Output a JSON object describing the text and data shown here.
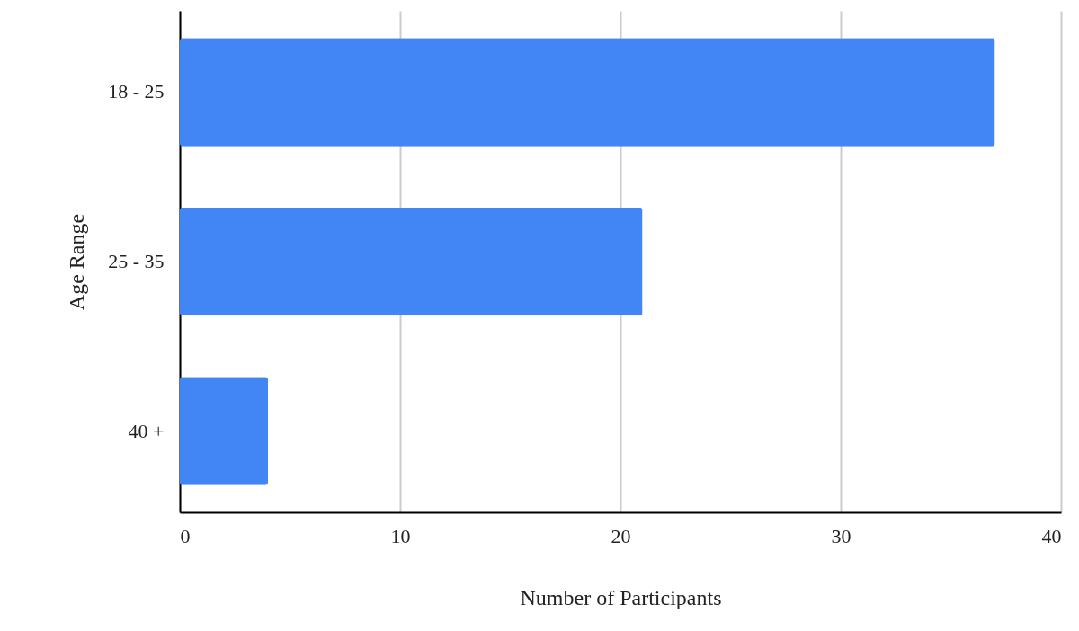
{
  "chart_data": {
    "type": "bar",
    "orientation": "horizontal",
    "categories": [
      "18 - 25",
      "25 - 35",
      "40 +"
    ],
    "values": [
      37,
      21,
      4
    ],
    "color": "#4285f4",
    "xlabel": "Number of Participants",
    "ylabel": "Age Range",
    "xlim": [
      0,
      40
    ],
    "xticks": [
      0,
      10,
      20,
      30,
      40
    ],
    "grid": "x"
  }
}
